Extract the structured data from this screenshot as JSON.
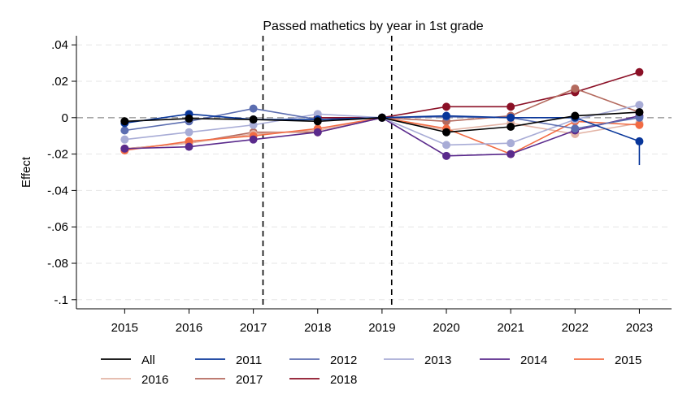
{
  "chart_data": {
    "type": "line",
    "title": "Passed mathetics by year in 1st grade",
    "xlabel": "",
    "ylabel": "Effect",
    "x": [
      2015,
      2016,
      2017,
      2018,
      2019,
      2020,
      2021,
      2022,
      2023
    ],
    "x_tick_labels": [
      "2015",
      "2016",
      "2017",
      "2018",
      "2019",
      "2020",
      "2021",
      "2022",
      "2023"
    ],
    "ylim": [
      -0.105,
      0.045
    ],
    "y_ticks": [
      0.04,
      0.02,
      0,
      -0.02,
      -0.04,
      -0.06,
      -0.08,
      -0.1
    ],
    "y_tick_labels": [
      ".04",
      ".02",
      "0",
      "-.02",
      "-.04",
      "-.06",
      "-.08",
      "-.1"
    ],
    "reference_line_y": 0,
    "vertical_lines_x": [
      2017.15,
      2019.15
    ],
    "grid": true,
    "legend_position": "bottom",
    "series": [
      {
        "name": "All",
        "color": "#000000",
        "values": [
          -0.002,
          -0.0005,
          -0.001,
          -0.002,
          0,
          -0.008,
          -0.005,
          0.001,
          0.003
        ]
      },
      {
        "name": "2011",
        "color": "#08369a",
        "values": [
          -0.003,
          0.002,
          -0.001,
          -0.001,
          0,
          0.001,
          0,
          0,
          -0.013
        ],
        "error_bar": {
          "x": 2023,
          "low": -0.026,
          "high": -0.013
        }
      },
      {
        "name": "2012",
        "color": "#5b6db0",
        "values": [
          -0.007,
          -0.002,
          0.005,
          -0.001,
          0,
          0.0005,
          0,
          -0.006,
          0
        ]
      },
      {
        "name": "2013",
        "color": "#a8acd6",
        "values": [
          -0.012,
          -0.008,
          -0.004,
          0.002,
          0,
          -0.015,
          -0.014,
          -0.001,
          0.007
        ]
      },
      {
        "name": "2014",
        "color": "#5a2a8c",
        "values": [
          -0.017,
          -0.016,
          -0.012,
          -0.008,
          0,
          -0.021,
          -0.02,
          -0.007,
          0.001
        ]
      },
      {
        "name": "2015",
        "color": "#f26b43",
        "values": [
          -0.018,
          -0.013,
          -0.01,
          -0.006,
          0,
          -0.006,
          -0.02,
          -0.002,
          -0.004
        ]
      },
      {
        "name": "2016",
        "color": "#e3b4a6",
        "values": [
          -0.017,
          -0.014,
          -0.009,
          -0.007,
          0,
          -0.007,
          -0.003,
          -0.009,
          -0.003
        ]
      },
      {
        "name": "2017",
        "color": "#b46a5e",
        "values": [
          -0.017,
          -0.014,
          -0.008,
          -0.008,
          0,
          -0.002,
          0.001,
          0.016,
          0.003
        ]
      },
      {
        "name": "2018",
        "color": "#8b1026",
        "values": [
          null,
          null,
          null,
          0,
          0,
          0.006,
          0.006,
          0.014,
          0.025
        ]
      }
    ]
  }
}
